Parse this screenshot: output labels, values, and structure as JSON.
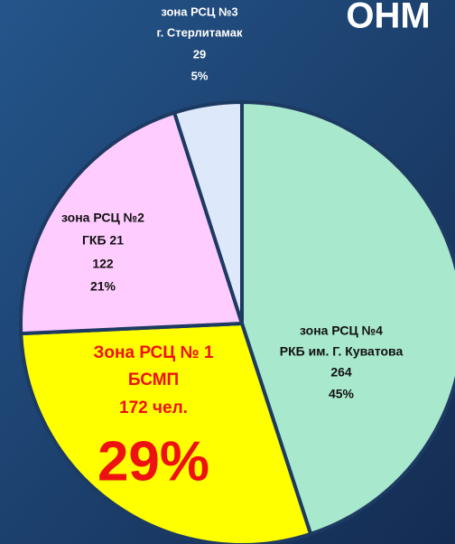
{
  "chart_data": {
    "type": "pie",
    "title": "ОНМ",
    "categories": [
      "зона РСЦ №4",
      "Зона РСЦ № 1",
      "зона РСЦ №2",
      "зона РСЦ №3"
    ],
    "sublabels": [
      "РКБ им. Г. Куватова",
      "БСМП",
      "ГКБ 21",
      "г. Стерлитамак"
    ],
    "values": [
      264,
      172,
      122,
      29
    ],
    "value_labels": [
      "264",
      "172 чел.",
      "122",
      "29"
    ],
    "percent_labels": [
      "45%",
      "29%",
      "21%",
      "5%"
    ],
    "colors": [
      "#a8e8cd",
      "#ffff00",
      "#ffccff",
      "#dde8fa"
    ]
  }
}
